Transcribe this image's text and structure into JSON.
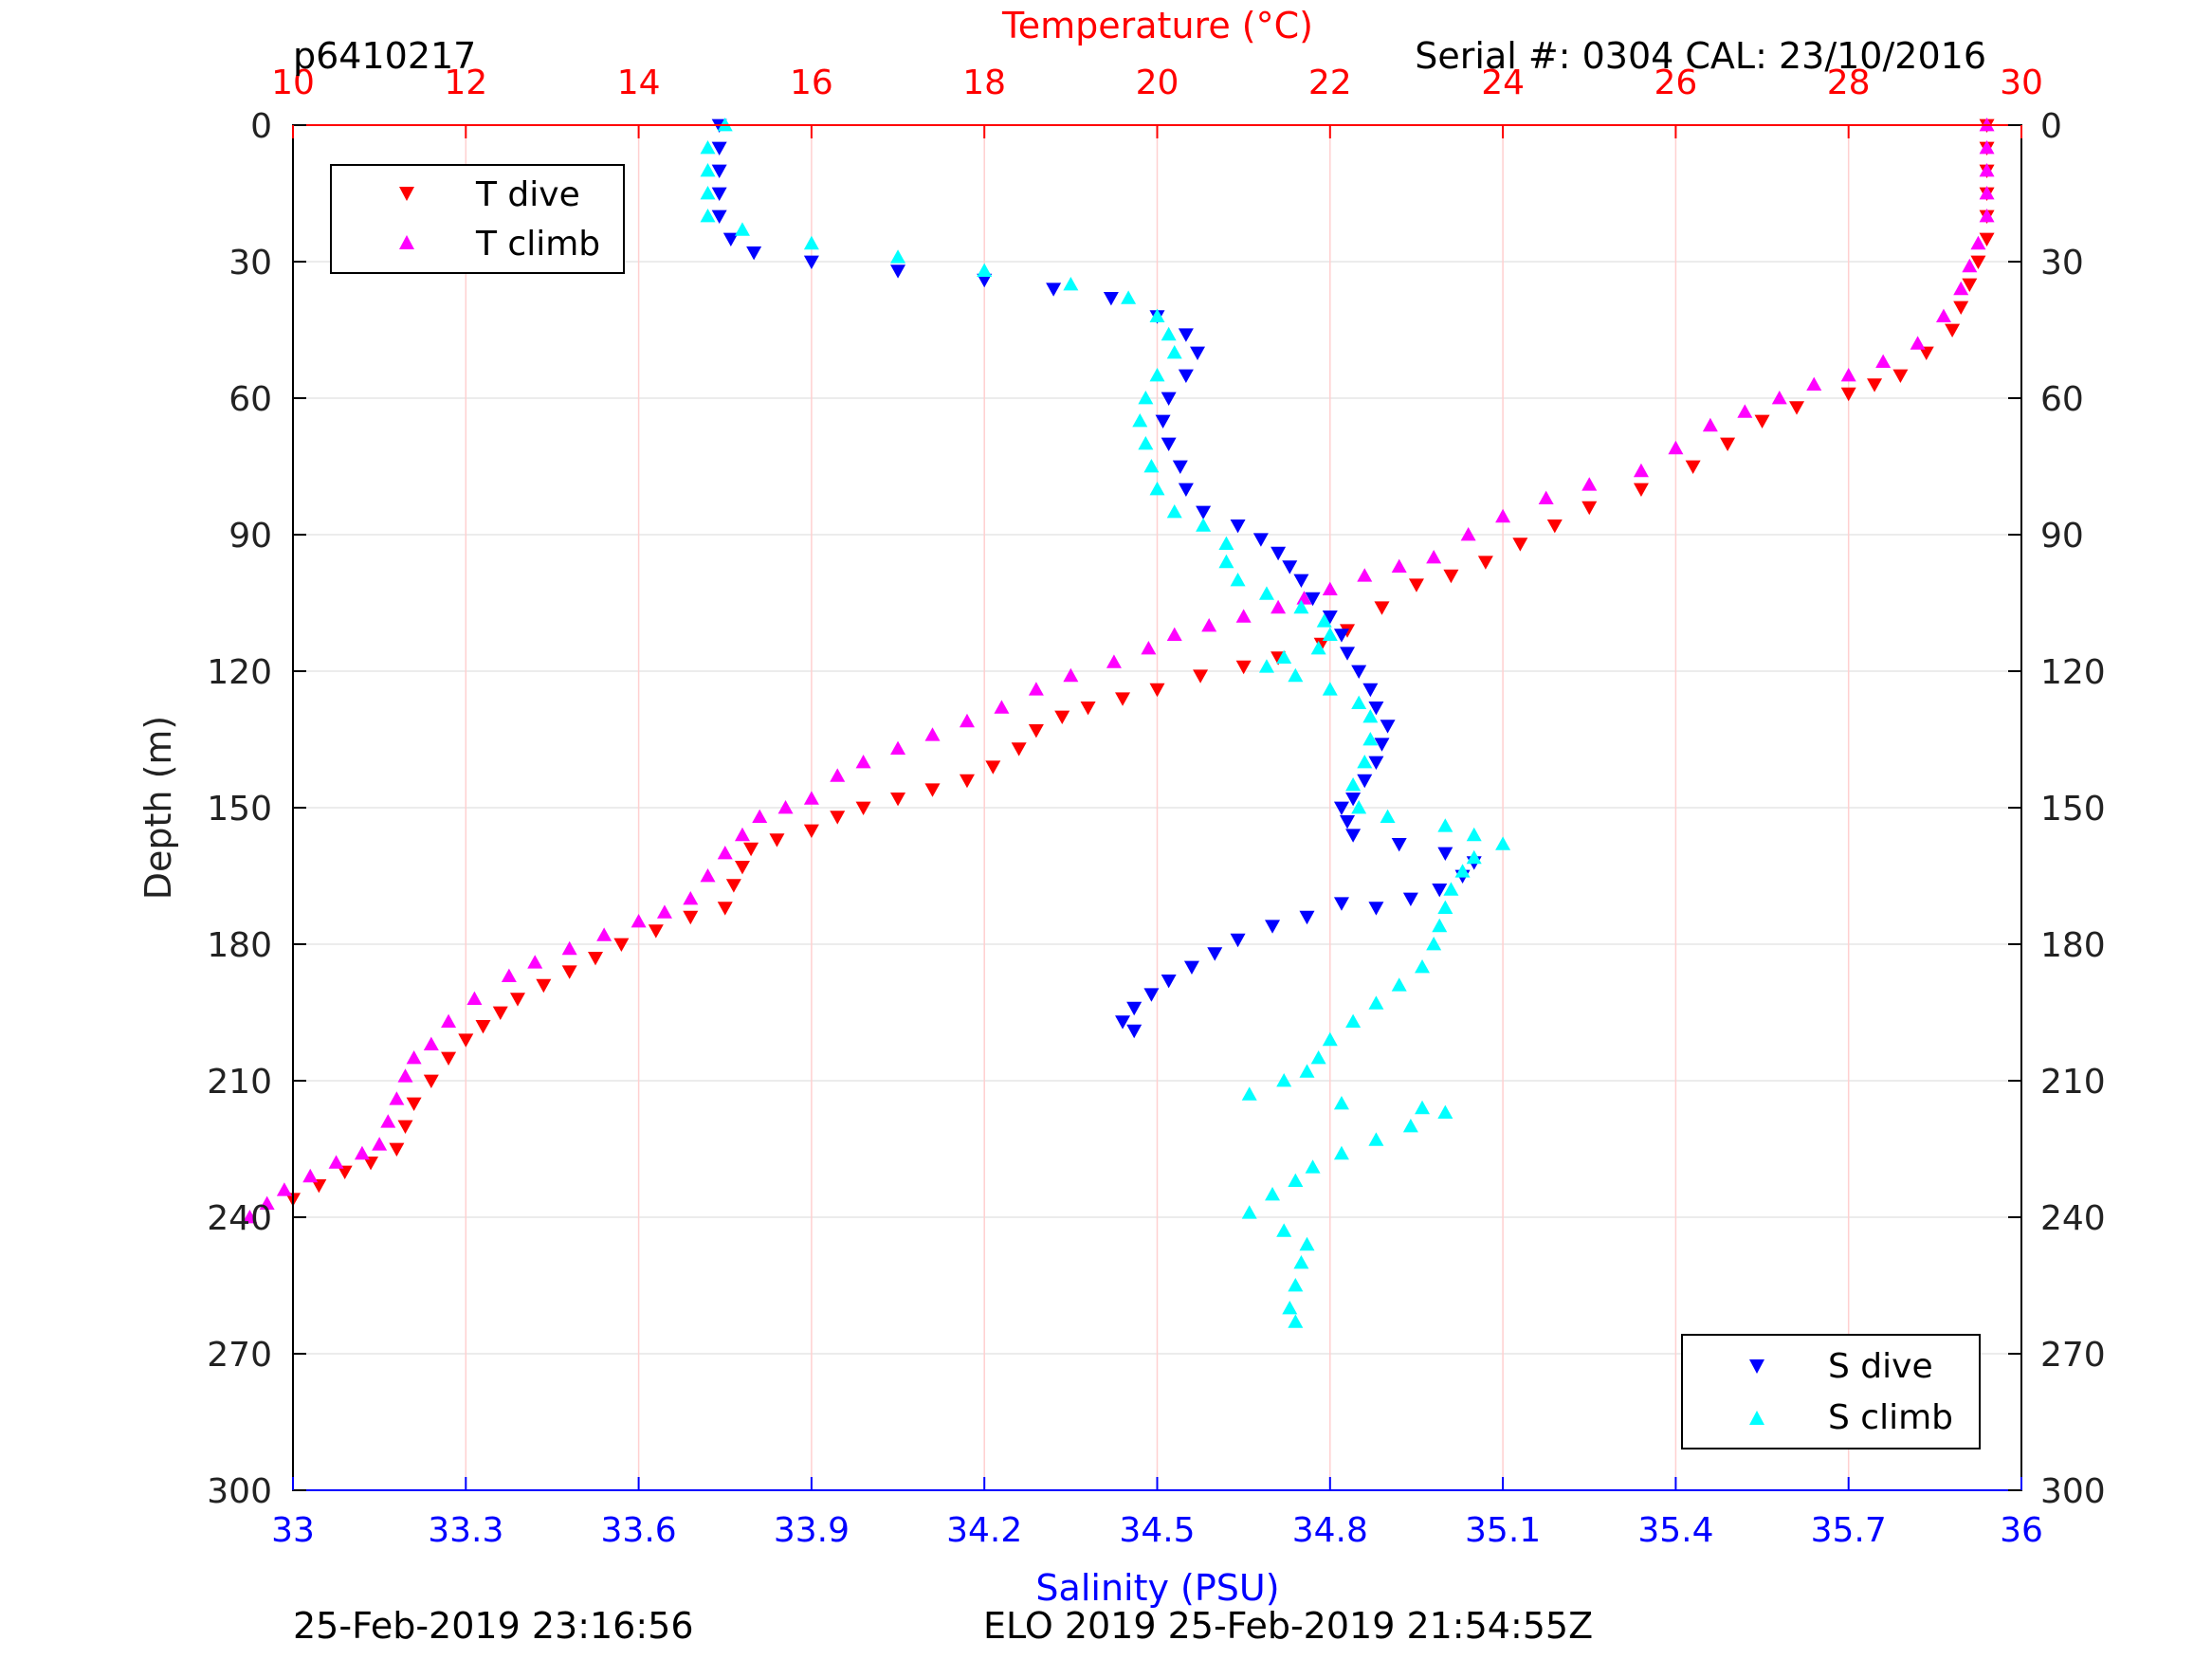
{
  "header": {
    "profile_id": "p6410217",
    "serial": "Serial #: 0304  CAL: 23/10/2016"
  },
  "footer": {
    "plot_time": "25-Feb-2019 23:16:56",
    "mission": "ELO 2019 25-Feb-2019 21:54:55Z"
  },
  "colors": {
    "t_dive": "#ff0000",
    "t_climb": "#ff00ff",
    "s_dive": "#0000ff",
    "s_climb": "#00ffff",
    "temperature_axis": "#ff0000",
    "salinity_axis": "#0000ff",
    "grid": "#e6e6e6",
    "temp_grid": "#ffd0d0"
  },
  "chart_data": {
    "type": "scatter",
    "title": "",
    "grid": true,
    "y_axis": {
      "label": "Depth (m)",
      "range": [
        0,
        300
      ],
      "reversed": true,
      "ticks": [
        0,
        30,
        60,
        90,
        120,
        150,
        180,
        210,
        240,
        270,
        300
      ],
      "tick_labels": [
        "0",
        "30",
        "60",
        "90",
        "120",
        "150",
        "180",
        "210",
        "240",
        "270",
        "300"
      ]
    },
    "x_top_axis": {
      "label": "Temperature (°C)",
      "range": [
        10,
        30
      ],
      "ticks": [
        10,
        12,
        14,
        16,
        18,
        20,
        22,
        24,
        26,
        28,
        30
      ],
      "tick_labels": [
        "10",
        "12",
        "14",
        "16",
        "18",
        "20",
        "22",
        "24",
        "26",
        "28",
        "30"
      ]
    },
    "x_bottom_axis": {
      "label": "Salinity (PSU)",
      "range": [
        33,
        36
      ],
      "ticks": [
        33,
        33.3,
        33.6,
        33.9,
        34.2,
        34.5,
        34.8,
        35.1,
        35.4,
        35.7,
        36
      ],
      "tick_labels": [
        "33",
        "33.3",
        "33.6",
        "33.9",
        "34.2",
        "34.5",
        "34.8",
        "35.1",
        "35.4",
        "35.7",
        "36"
      ]
    },
    "legend_temperature": {
      "placement": "top-left",
      "entries": [
        "T dive",
        "T climb"
      ]
    },
    "legend_salinity": {
      "placement": "bottom-right",
      "entries": [
        "S dive",
        "S climb"
      ]
    },
    "series": [
      {
        "name": "T dive",
        "axis": "temperature",
        "marker": "triangle-down",
        "color": "#ff0000",
        "points": [
          [
            29.6,
            0
          ],
          [
            29.6,
            5
          ],
          [
            29.6,
            10
          ],
          [
            29.6,
            15
          ],
          [
            29.6,
            20
          ],
          [
            29.6,
            25
          ],
          [
            29.5,
            30
          ],
          [
            29.4,
            35
          ],
          [
            29.3,
            40
          ],
          [
            29.2,
            45
          ],
          [
            28.9,
            50
          ],
          [
            28.6,
            55
          ],
          [
            28.3,
            57
          ],
          [
            28.0,
            59
          ],
          [
            27.4,
            62
          ],
          [
            27.0,
            65
          ],
          [
            26.6,
            70
          ],
          [
            26.2,
            75
          ],
          [
            25.6,
            80
          ],
          [
            25.0,
            84
          ],
          [
            24.6,
            88
          ],
          [
            24.2,
            92
          ],
          [
            23.8,
            96
          ],
          [
            23.4,
            99
          ],
          [
            23.0,
            101
          ],
          [
            22.6,
            106
          ],
          [
            22.2,
            111
          ],
          [
            21.9,
            114
          ],
          [
            21.4,
            117
          ],
          [
            21.0,
            119
          ],
          [
            20.5,
            121
          ],
          [
            20.0,
            124
          ],
          [
            19.6,
            126
          ],
          [
            19.2,
            128
          ],
          [
            18.9,
            130
          ],
          [
            18.6,
            133
          ],
          [
            18.4,
            137
          ],
          [
            18.1,
            141
          ],
          [
            17.8,
            144
          ],
          [
            17.4,
            146
          ],
          [
            17.0,
            148
          ],
          [
            16.6,
            150
          ],
          [
            16.3,
            152
          ],
          [
            16.0,
            155
          ],
          [
            15.6,
            157
          ],
          [
            15.3,
            159
          ],
          [
            15.2,
            163
          ],
          [
            15.1,
            167
          ],
          [
            15.0,
            172
          ],
          [
            14.6,
            174
          ],
          [
            14.2,
            177
          ],
          [
            13.8,
            180
          ],
          [
            13.5,
            183
          ],
          [
            13.2,
            186
          ],
          [
            12.9,
            189
          ],
          [
            12.6,
            192
          ],
          [
            12.4,
            195
          ],
          [
            12.2,
            198
          ],
          [
            12.0,
            201
          ],
          [
            11.8,
            205
          ],
          [
            11.6,
            210
          ],
          [
            11.4,
            215
          ],
          [
            11.3,
            220
          ],
          [
            11.2,
            225
          ],
          [
            10.9,
            228
          ],
          [
            10.6,
            230
          ],
          [
            10.3,
            233
          ],
          [
            10.0,
            236
          ]
        ]
      },
      {
        "name": "T climb",
        "axis": "temperature",
        "marker": "triangle-up",
        "color": "#ff00ff",
        "points": [
          [
            29.6,
            0
          ],
          [
            29.6,
            5
          ],
          [
            29.6,
            10
          ],
          [
            29.6,
            15
          ],
          [
            29.6,
            20
          ],
          [
            29.5,
            26
          ],
          [
            29.4,
            31
          ],
          [
            29.3,
            36
          ],
          [
            29.1,
            42
          ],
          [
            28.8,
            48
          ],
          [
            28.4,
            52
          ],
          [
            28.0,
            55
          ],
          [
            27.6,
            57
          ],
          [
            27.2,
            60
          ],
          [
            26.8,
            63
          ],
          [
            26.4,
            66
          ],
          [
            26.0,
            71
          ],
          [
            25.6,
            76
          ],
          [
            25.0,
            79
          ],
          [
            24.5,
            82
          ],
          [
            24.0,
            86
          ],
          [
            23.6,
            90
          ],
          [
            23.2,
            95
          ],
          [
            22.8,
            97
          ],
          [
            22.4,
            99
          ],
          [
            22.0,
            102
          ],
          [
            21.7,
            104
          ],
          [
            21.4,
            106
          ],
          [
            21.0,
            108
          ],
          [
            20.6,
            110
          ],
          [
            20.2,
            112
          ],
          [
            19.9,
            115
          ],
          [
            19.5,
            118
          ],
          [
            19.0,
            121
          ],
          [
            18.6,
            124
          ],
          [
            18.2,
            128
          ],
          [
            17.8,
            131
          ],
          [
            17.4,
            134
          ],
          [
            17.0,
            137
          ],
          [
            16.6,
            140
          ],
          [
            16.3,
            143
          ],
          [
            16.0,
            148
          ],
          [
            15.7,
            150
          ],
          [
            15.4,
            152
          ],
          [
            15.2,
            156
          ],
          [
            15.0,
            160
          ],
          [
            14.8,
            165
          ],
          [
            14.6,
            170
          ],
          [
            14.3,
            173
          ],
          [
            14.0,
            175
          ],
          [
            13.6,
            178
          ],
          [
            13.2,
            181
          ],
          [
            12.8,
            184
          ],
          [
            12.5,
            187
          ],
          [
            12.1,
            192
          ],
          [
            11.8,
            197
          ],
          [
            11.6,
            202
          ],
          [
            11.4,
            205
          ],
          [
            11.3,
            209
          ],
          [
            11.2,
            214
          ],
          [
            11.1,
            219
          ],
          [
            11.0,
            224
          ],
          [
            10.8,
            226
          ],
          [
            10.5,
            228
          ],
          [
            10.2,
            231
          ],
          [
            9.9,
            234
          ],
          [
            9.7,
            237
          ],
          [
            9.5,
            240
          ]
        ]
      },
      {
        "name": "S dive",
        "axis": "salinity",
        "marker": "triangle-down",
        "color": "#0000ff",
        "points": [
          [
            33.74,
            0
          ],
          [
            33.74,
            5
          ],
          [
            33.74,
            10
          ],
          [
            33.74,
            15
          ],
          [
            33.74,
            20
          ],
          [
            33.76,
            25
          ],
          [
            33.8,
            28
          ],
          [
            33.9,
            30
          ],
          [
            34.05,
            32
          ],
          [
            34.2,
            34
          ],
          [
            34.32,
            36
          ],
          [
            34.42,
            38
          ],
          [
            34.5,
            42
          ],
          [
            34.55,
            46
          ],
          [
            34.57,
            50
          ],
          [
            34.55,
            55
          ],
          [
            34.52,
            60
          ],
          [
            34.51,
            65
          ],
          [
            34.52,
            70
          ],
          [
            34.54,
            75
          ],
          [
            34.55,
            80
          ],
          [
            34.58,
            85
          ],
          [
            34.64,
            88
          ],
          [
            34.68,
            91
          ],
          [
            34.71,
            94
          ],
          [
            34.73,
            97
          ],
          [
            34.75,
            100
          ],
          [
            34.77,
            104
          ],
          [
            34.8,
            108
          ],
          [
            34.82,
            112
          ],
          [
            34.83,
            116
          ],
          [
            34.85,
            120
          ],
          [
            34.87,
            124
          ],
          [
            34.88,
            128
          ],
          [
            34.9,
            132
          ],
          [
            34.89,
            136
          ],
          [
            34.88,
            140
          ],
          [
            34.86,
            144
          ],
          [
            34.84,
            148
          ],
          [
            34.82,
            150
          ],
          [
            34.83,
            153
          ],
          [
            34.84,
            156
          ],
          [
            34.92,
            158
          ],
          [
            35.0,
            160
          ],
          [
            35.05,
            162
          ],
          [
            35.03,
            165
          ],
          [
            34.99,
            168
          ],
          [
            34.94,
            170
          ],
          [
            34.88,
            172
          ],
          [
            34.82,
            171
          ],
          [
            34.76,
            174
          ],
          [
            34.7,
            176
          ],
          [
            34.64,
            179
          ],
          [
            34.6,
            182
          ],
          [
            34.56,
            185
          ],
          [
            34.52,
            188
          ],
          [
            34.49,
            191
          ],
          [
            34.46,
            194
          ],
          [
            34.44,
            197
          ],
          [
            34.46,
            199
          ]
        ]
      },
      {
        "name": "S climb",
        "axis": "salinity",
        "marker": "triangle-up",
        "color": "#00ffff",
        "points": [
          [
            33.75,
            0
          ],
          [
            33.72,
            5
          ],
          [
            33.72,
            10
          ],
          [
            33.72,
            15
          ],
          [
            33.72,
            20
          ],
          [
            33.78,
            23
          ],
          [
            33.9,
            26
          ],
          [
            34.05,
            29
          ],
          [
            34.2,
            32
          ],
          [
            34.35,
            35
          ],
          [
            34.45,
            38
          ],
          [
            34.5,
            42
          ],
          [
            34.52,
            46
          ],
          [
            34.53,
            50
          ],
          [
            34.5,
            55
          ],
          [
            34.48,
            60
          ],
          [
            34.47,
            65
          ],
          [
            34.48,
            70
          ],
          [
            34.49,
            75
          ],
          [
            34.5,
            80
          ],
          [
            34.53,
            85
          ],
          [
            34.58,
            88
          ],
          [
            34.62,
            92
          ],
          [
            34.62,
            96
          ],
          [
            34.64,
            100
          ],
          [
            34.69,
            103
          ],
          [
            34.75,
            106
          ],
          [
            34.79,
            109
          ],
          [
            34.8,
            112
          ],
          [
            34.78,
            115
          ],
          [
            34.72,
            117
          ],
          [
            34.69,
            119
          ],
          [
            34.74,
            121
          ],
          [
            34.8,
            124
          ],
          [
            34.85,
            127
          ],
          [
            34.87,
            130
          ],
          [
            34.87,
            135
          ],
          [
            34.86,
            140
          ],
          [
            34.84,
            145
          ],
          [
            34.85,
            150
          ],
          [
            34.9,
            152
          ],
          [
            35.0,
            154
          ],
          [
            35.05,
            156
          ],
          [
            35.1,
            158
          ],
          [
            35.05,
            161
          ],
          [
            35.03,
            164
          ],
          [
            35.01,
            168
          ],
          [
            35.0,
            172
          ],
          [
            34.99,
            176
          ],
          [
            34.98,
            180
          ],
          [
            34.96,
            185
          ],
          [
            34.92,
            189
          ],
          [
            34.88,
            193
          ],
          [
            34.84,
            197
          ],
          [
            34.8,
            201
          ],
          [
            34.78,
            205
          ],
          [
            34.76,
            208
          ],
          [
            34.72,
            210
          ],
          [
            34.66,
            213
          ],
          [
            34.82,
            215
          ],
          [
            34.96,
            216
          ],
          [
            35.0,
            217
          ],
          [
            34.94,
            220
          ],
          [
            34.88,
            223
          ],
          [
            34.82,
            226
          ],
          [
            34.77,
            229
          ],
          [
            34.74,
            232
          ],
          [
            34.7,
            235
          ],
          [
            34.66,
            239
          ],
          [
            34.72,
            243
          ],
          [
            34.76,
            246
          ],
          [
            34.75,
            250
          ],
          [
            34.74,
            255
          ],
          [
            34.73,
            260
          ],
          [
            34.74,
            263
          ]
        ]
      }
    ]
  }
}
